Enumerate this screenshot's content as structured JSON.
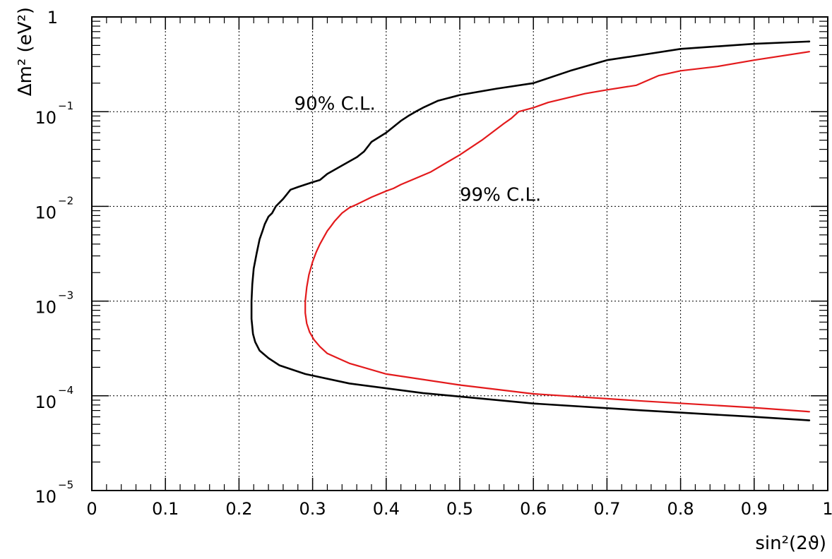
{
  "chart_data": {
    "type": "line",
    "xlabel": "sin²(2ϑ)",
    "ylabel": "Δm² (eV²)",
    "xscale": "linear",
    "yscale": "log",
    "xlim": [
      0,
      1
    ],
    "ylim": [
      1e-05,
      1
    ],
    "grid": true,
    "x_ticks": [
      "0",
      "0.1",
      "0.2",
      "0.3",
      "0.4",
      "0.5",
      "0.6",
      "0.7",
      "0.8",
      "0.9",
      "1"
    ],
    "y_ticks": [
      {
        "value": 1,
        "base": "1",
        "exp": ""
      },
      {
        "value": 0.1,
        "base": "10",
        "exp": "−1"
      },
      {
        "value": 0.01,
        "base": "10",
        "exp": "−2"
      },
      {
        "value": 0.001,
        "base": "10",
        "exp": "−3"
      },
      {
        "value": 0.0001,
        "base": "10",
        "exp": "−4"
      },
      {
        "value": 1e-05,
        "base": "10",
        "exp": "−5"
      }
    ],
    "annotations": [
      {
        "text": "90% C.L.",
        "x": 0.275,
        "y": 0.105
      },
      {
        "text": "99% C.L.",
        "x": 0.5,
        "y": 0.0115
      }
    ],
    "series": [
      {
        "color": "#000000",
        "x": [
          0.975,
          0.9,
          0.8,
          0.75,
          0.7,
          0.65,
          0.6,
          0.55,
          0.5,
          0.47,
          0.45,
          0.44,
          0.43,
          0.42,
          0.4,
          0.38,
          0.37,
          0.36,
          0.34,
          0.32,
          0.31,
          0.3,
          0.28,
          0.27,
          0.26,
          0.25,
          0.245,
          0.24,
          0.235,
          0.232,
          0.228,
          0.224,
          0.22,
          0.218,
          0.217,
          0.217,
          0.219,
          0.222,
          0.228,
          0.24,
          0.255,
          0.29,
          0.35,
          0.45,
          0.6,
          0.75,
          0.9,
          0.975
        ],
        "y": [
          0.55,
          0.52,
          0.46,
          0.4,
          0.35,
          0.27,
          0.2,
          0.175,
          0.15,
          0.13,
          0.11,
          0.1,
          0.09,
          0.08,
          0.06,
          0.048,
          0.038,
          0.033,
          0.027,
          0.022,
          0.019,
          0.018,
          0.016,
          0.015,
          0.012,
          0.01,
          0.0085,
          0.0078,
          0.0065,
          0.0055,
          0.0045,
          0.0032,
          0.0022,
          0.0015,
          0.001,
          0.00065,
          0.00045,
          0.00037,
          0.0003,
          0.00025,
          0.00021,
          0.00017,
          0.000135,
          0.000107,
          8.3e-05,
          7e-05,
          6e-05,
          5.5e-05
        ]
      },
      {
        "color": "#e31a1c",
        "x": [
          0.975,
          0.9,
          0.85,
          0.8,
          0.77,
          0.74,
          0.7,
          0.67,
          0.62,
          0.6,
          0.58,
          0.57,
          0.56,
          0.53,
          0.5,
          0.46,
          0.42,
          0.41,
          0.4,
          0.38,
          0.36,
          0.35,
          0.34,
          0.33,
          0.325,
          0.32,
          0.315,
          0.31,
          0.305,
          0.3,
          0.295,
          0.292,
          0.29,
          0.29,
          0.292,
          0.296,
          0.302,
          0.31,
          0.32,
          0.35,
          0.4,
          0.5,
          0.6,
          0.75,
          0.9,
          0.975
        ],
        "y": [
          0.43,
          0.35,
          0.3,
          0.27,
          0.24,
          0.19,
          0.17,
          0.155,
          0.125,
          0.11,
          0.1,
          0.085,
          0.075,
          0.05,
          0.035,
          0.023,
          0.017,
          0.0155,
          0.0145,
          0.0125,
          0.0105,
          0.0097,
          0.0085,
          0.007,
          0.0062,
          0.0055,
          0.0047,
          0.004,
          0.0033,
          0.0026,
          0.0019,
          0.0014,
          0.001,
          0.00075,
          0.00058,
          0.00047,
          0.00039,
          0.00033,
          0.00028,
          0.00022,
          0.00017,
          0.00013,
          0.000105,
          8.8e-05,
          7.5e-05,
          6.8e-05
        ]
      }
    ]
  }
}
